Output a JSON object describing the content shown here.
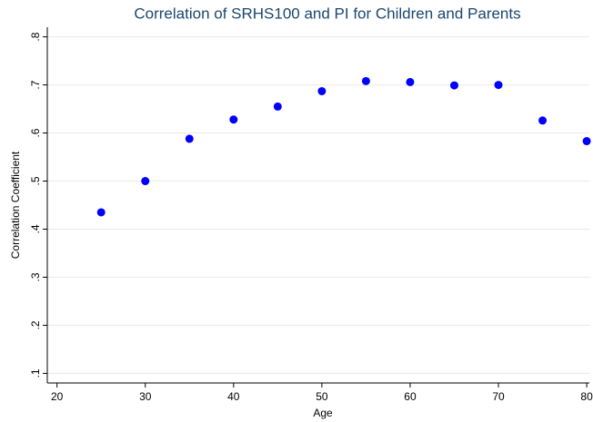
{
  "chart_data": {
    "type": "scatter",
    "title": "Correlation of SRHS100 and PI for Children and Parents",
    "x_label": "Age",
    "y_label": "Correlation Coefficient",
    "x": [
      25,
      30,
      35,
      40,
      45,
      50,
      55,
      60,
      65,
      70,
      75,
      80
    ],
    "values": [
      0.435,
      0.5,
      0.588,
      0.628,
      0.655,
      0.687,
      0.708,
      0.706,
      0.699,
      0.7,
      0.626,
      0.583
    ],
    "color": "#0000ff",
    "xlim": [
      18.9,
      80.3
    ],
    "ylim": [
      0.08,
      0.82
    ],
    "xticks": [
      20,
      30,
      40,
      50,
      60,
      70,
      80
    ],
    "yticks": [
      {
        "value": 0.1,
        "label": ".1"
      },
      {
        "value": 0.2,
        "label": ".2"
      },
      {
        "value": 0.3,
        "label": ".3"
      },
      {
        "value": 0.4,
        "label": ".4"
      },
      {
        "value": 0.5,
        "label": ".5"
      },
      {
        "value": 0.6,
        "label": ".6"
      },
      {
        "value": 0.7,
        "label": ".7"
      },
      {
        "value": 0.8,
        "label": ".8"
      }
    ],
    "grid": true
  }
}
